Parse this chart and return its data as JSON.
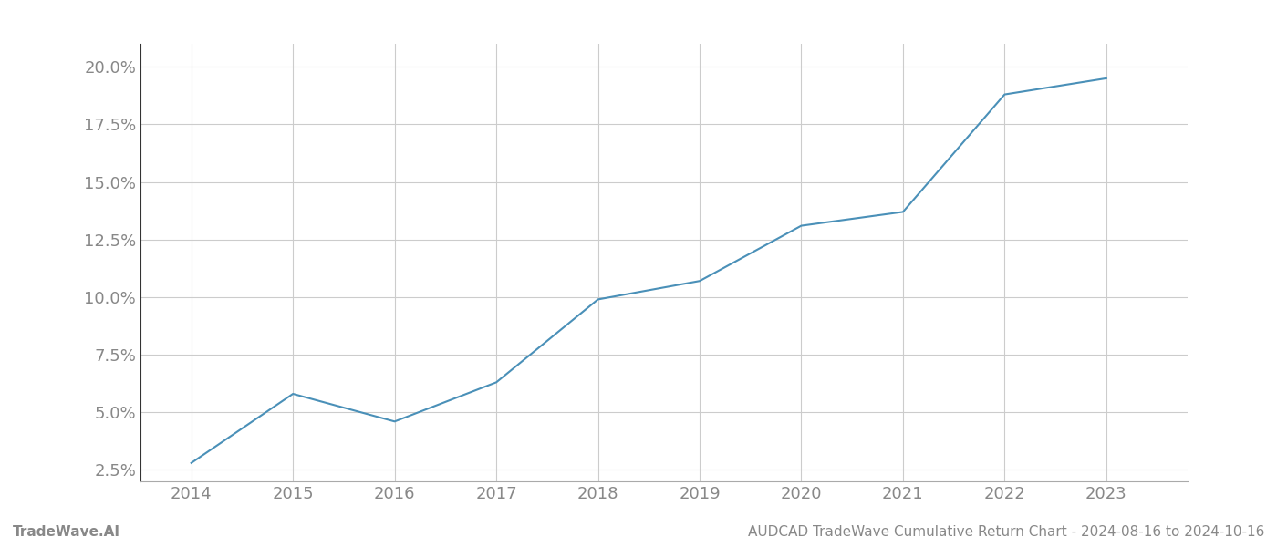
{
  "x_years": [
    2014,
    2015,
    2016,
    2017,
    2018,
    2019,
    2020,
    2021,
    2022,
    2023
  ],
  "y_values": [
    2.8,
    5.8,
    4.6,
    6.3,
    9.9,
    10.7,
    13.1,
    13.7,
    18.8,
    19.5
  ],
  "line_color": "#4a90b8",
  "line_width": 1.5,
  "background_color": "#ffffff",
  "grid_color": "#cccccc",
  "title": "AUDCAD TradeWave Cumulative Return Chart - 2024-08-16 to 2024-10-16",
  "footer_left": "TradeWave.AI",
  "footer_right": "AUDCAD TradeWave Cumulative Return Chart - 2024-08-16 to 2024-10-16",
  "ytick_labels": [
    "2.5%",
    "5.0%",
    "7.5%",
    "10.0%",
    "12.5%",
    "15.0%",
    "17.5%",
    "20.0%"
  ],
  "ytick_values": [
    2.5,
    5.0,
    7.5,
    10.0,
    12.5,
    15.0,
    17.5,
    20.0
  ],
  "ylim": [
    2.0,
    21.0
  ],
  "xlim_start": 2013.5,
  "xlim_end": 2023.8,
  "tick_color": "#888888",
  "spine_color": "#aaaaaa",
  "footer_fontsize": 11,
  "tick_fontsize": 13,
  "left_spine_color": "#333333"
}
